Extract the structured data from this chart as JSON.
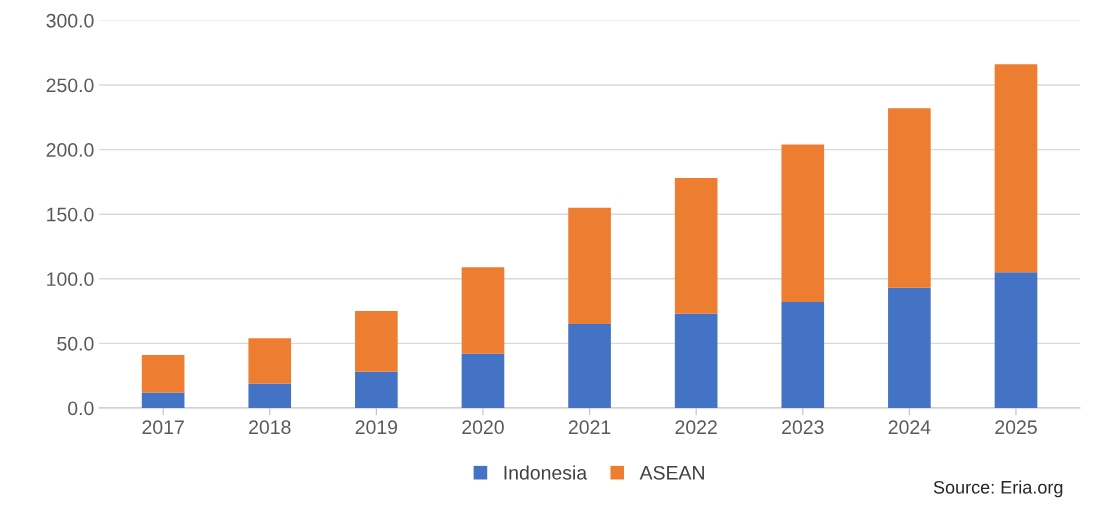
{
  "chart_data": {
    "type": "bar",
    "stacked": true,
    "categories": [
      "2017",
      "2018",
      "2019",
      "2020",
      "2021",
      "2022",
      "2023",
      "2024",
      "2025"
    ],
    "series": [
      {
        "name": "Indonesia",
        "color": "#4472c4",
        "values": [
          12,
          19,
          28,
          42,
          65,
          73,
          82,
          93,
          105
        ]
      },
      {
        "name": "ASEAN",
        "color": "#ed7d31",
        "values": [
          29,
          35,
          47,
          67,
          90,
          105,
          122,
          139,
          161
        ]
      }
    ],
    "ylim": [
      0,
      300
    ],
    "yticks": [
      {
        "value": 0,
        "label": "0.0"
      },
      {
        "value": 50,
        "label": "50.0"
      },
      {
        "value": 100,
        "label": "100.0"
      },
      {
        "value": 150,
        "label": "150.0"
      },
      {
        "value": 200,
        "label": "200.0"
      },
      {
        "value": 250,
        "label": "250.0"
      },
      {
        "value": 300,
        "label": "300.0"
      }
    ],
    "grid": "y",
    "legend": "bottom",
    "annotations": [
      "Source: Eria.org"
    ]
  }
}
